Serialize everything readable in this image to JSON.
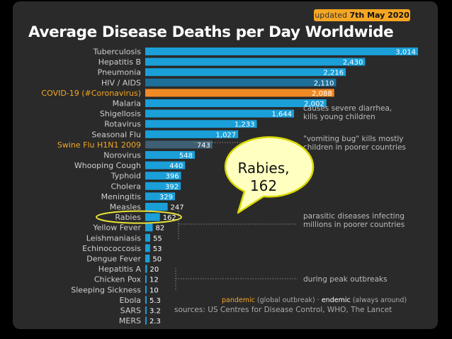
{
  "header": {
    "updated_prefix": "updated ",
    "updated_date": "7th May 2020",
    "title": "Average Disease Deaths per Day Worldwide"
  },
  "chart_data": {
    "type": "bar",
    "orientation": "horizontal",
    "title": "Average Disease Deaths per Day Worldwide",
    "categories": [
      "Tuberculosis",
      "Hepatitis B",
      "Pneumonia",
      "HIV / AIDS",
      "COVID-19 (#Coronavirus)",
      "Malaria",
      "Shigellosis",
      "Rotavirus",
      "Seasonal Flu",
      "Swine Flu H1N1 2009",
      "Norovirus",
      "Whooping Cough",
      "Typhoid",
      "Cholera",
      "Meningitis",
      "Measles",
      "Rabies",
      "Yellow Fever",
      "Leishmaniasis",
      "Echinococcosis",
      "Dengue Fever",
      "Hepatitis A",
      "Chicken Pox",
      "Sleeping Sickness",
      "Ebola",
      "SARS",
      "MERS"
    ],
    "values": [
      3014,
      2430,
      2216,
      2110,
      2088,
      2002,
      1644,
      1233,
      1027,
      743,
      548,
      440,
      396,
      392,
      329,
      247,
      162,
      82,
      55,
      53,
      50,
      20,
      12,
      10,
      5.3,
      3.2,
      2.3
    ],
    "value_labels": [
      "3,014",
      "2,430",
      "2,216",
      "2,110",
      "2,088",
      "2,002",
      "1,644",
      "1,233",
      "1,027",
      "743",
      "548",
      "440",
      "396",
      "392",
      "329",
      "247",
      "162",
      "82",
      "55",
      "53",
      "50",
      "20",
      "12",
      "10",
      "5.3",
      "3.2",
      "2.3"
    ],
    "types": [
      "endemic",
      "endemic",
      "endemic",
      "endemic",
      "pandemic",
      "endemic",
      "endemic",
      "endemic",
      "endemic",
      "pandemic",
      "endemic",
      "endemic",
      "endemic",
      "endemic",
      "endemic",
      "endemic",
      "endemic",
      "endemic",
      "endemic",
      "endemic",
      "endemic",
      "endemic",
      "endemic",
      "endemic",
      "endemic",
      "endemic",
      "endemic"
    ],
    "colors": {
      "endemic_label": "#cfcfcf",
      "pandemic_label": "#f5a623",
      "bar": "#1a9fd8",
      "bar_dark": "#1d6f9a",
      "bar_covid": "#f08a24",
      "bar_swine": "#3f5f73",
      "background": "#2a2a2a",
      "highlight": "#e8e23a"
    },
    "highlight": "Rabies",
    "annotations": [
      {
        "text": "causes severe diarrhea,",
        "text2": "kills young children"
      },
      {
        "text": "\"vomiting bug\" kills mostly",
        "text2": "children in poorer countries"
      },
      {
        "text": "parasitic diseases infecting",
        "text2": "millions in poorer countries"
      },
      {
        "text": "during peak outbreaks",
        "text2": ""
      }
    ]
  },
  "callout": {
    "line1": "Rabies,",
    "line2": "162"
  },
  "footer": {
    "pandemic_word": "pandemic",
    "pandemic_desc": " (global outbreak)",
    "sep": " · ",
    "endemic_word": "endemic",
    "endemic_desc": " (always around)",
    "sources": "sources: US Centres for Disease Control, WHO, The Lancet"
  }
}
